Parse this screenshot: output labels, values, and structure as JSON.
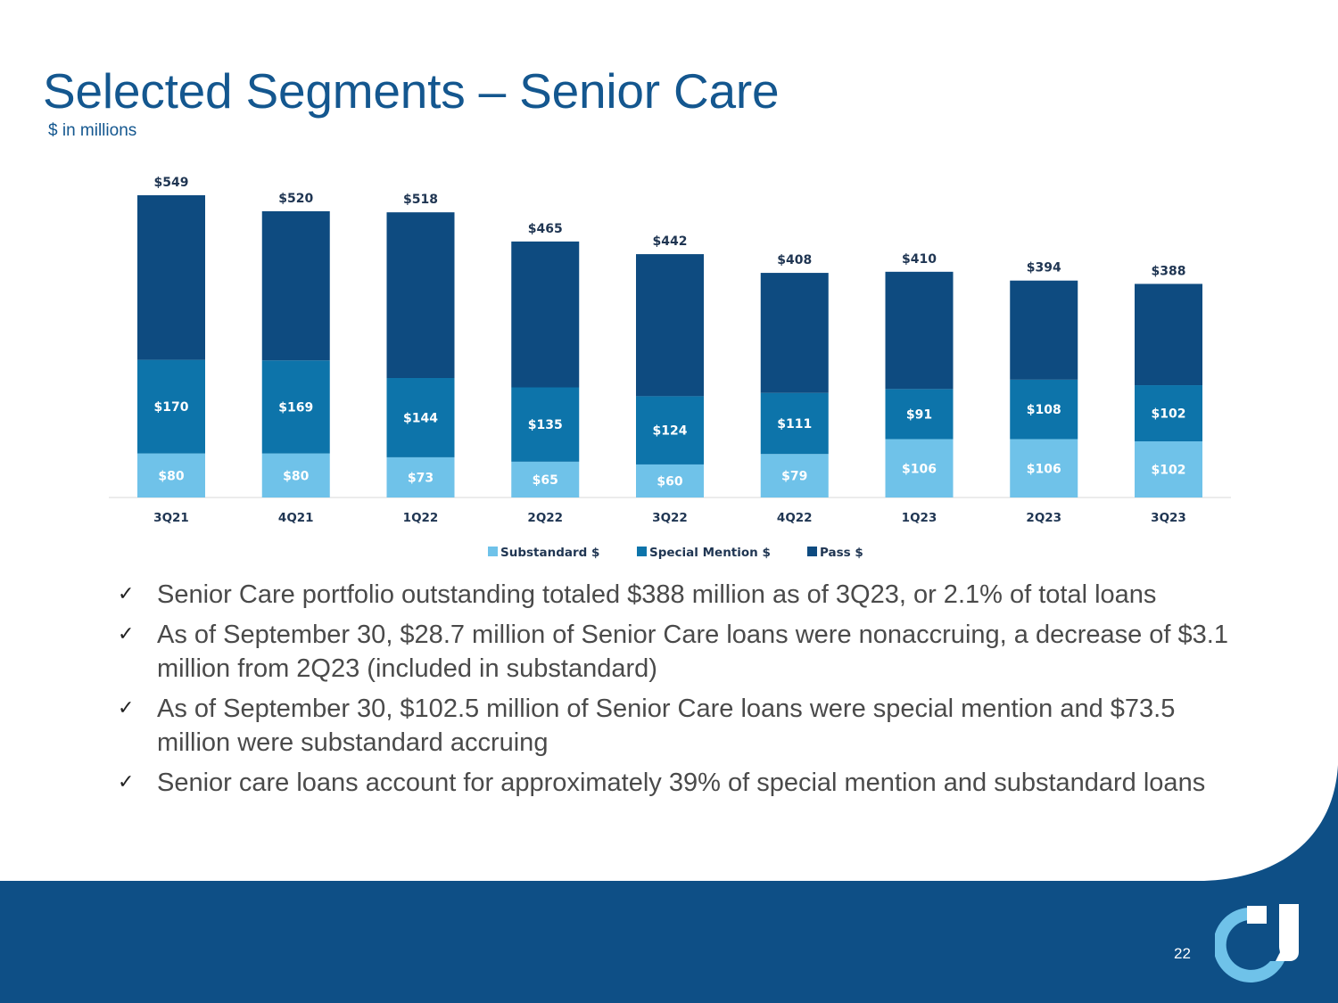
{
  "header": {
    "title": "Selected Segments – Senior Care",
    "subtitle": "$ in millions"
  },
  "chart_data": {
    "type": "bar",
    "stacked": true,
    "title": "",
    "xlabel": "",
    "ylabel": "",
    "ylim": [
      0,
      549
    ],
    "grid": false,
    "categories": [
      "3Q21",
      "4Q21",
      "1Q22",
      "2Q22",
      "3Q22",
      "4Q22",
      "1Q23",
      "2Q23",
      "3Q23"
    ],
    "series": [
      {
        "name": "Substandard $",
        "color": "#6fc2e9",
        "values": [
          80,
          80,
          73,
          65,
          60,
          79,
          106,
          106,
          102
        ]
      },
      {
        "name": "Special Mention $",
        "color": "#0d74aa",
        "values": [
          170,
          169,
          144,
          135,
          124,
          111,
          91,
          108,
          102
        ]
      },
      {
        "name": "Pass $",
        "color": "#0e4b80",
        "values": [
          299,
          271,
          301,
          265,
          258,
          218,
          213,
          180,
          184
        ]
      }
    ],
    "totals": [
      549,
      520,
      518,
      465,
      442,
      408,
      410,
      394,
      388
    ],
    "legend": "bottom",
    "label_prefix": "$"
  },
  "bullets": [
    {
      "text": "Senior Care portfolio outstanding totaled $388 million as of 3Q23, or 2.1% of total loans"
    },
    {
      "text": "As of September 30, $28.7 million of Senior Care loans were nonaccruing, a decrease of $3.1 million from 2Q23 (included in substandard)"
    },
    {
      "text": "As of September 30, $102.5 million of Senior Care loans were special mention and $73.5 million were substandard accruing"
    },
    {
      "text": "Senior care loans account for approximately 39% of special mention and substandard loans"
    }
  ],
  "bullet_marker": "✓",
  "footer": {
    "page_number": "22"
  },
  "colors": {
    "title": "#14578f",
    "footer_bg": "#0e4f86",
    "logo_light": "#6fc2e9",
    "logo_white": "#ffffff"
  },
  "icons": {
    "logo": "company-logo-icon",
    "bullet": "checkmark-icon"
  }
}
